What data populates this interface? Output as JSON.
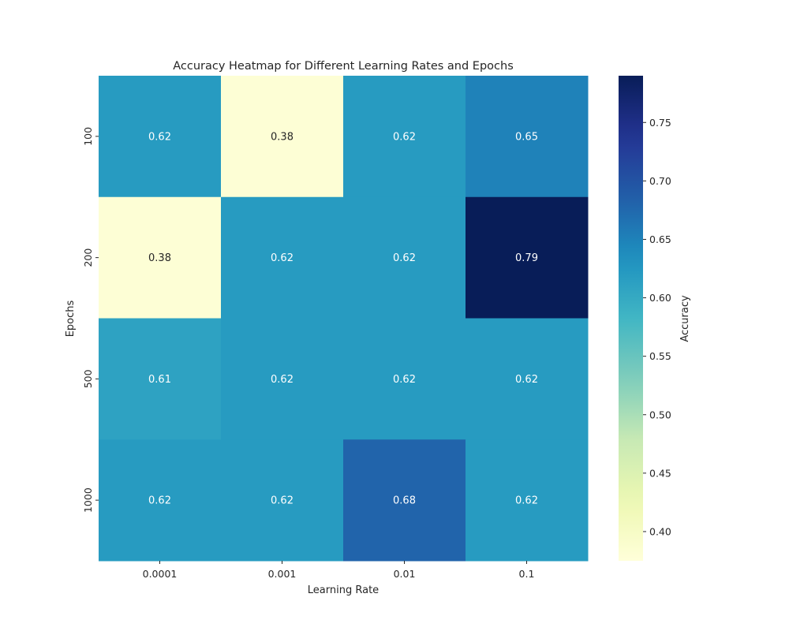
{
  "chart_data": {
    "type": "heatmap",
    "title": "Accuracy Heatmap for Different Learning Rates and Epochs",
    "xlabel": "Learning Rate",
    "ylabel": "Epochs",
    "x_categories": [
      "0.0001",
      "0.001",
      "0.01",
      "0.1"
    ],
    "y_categories": [
      "100",
      "200",
      "500",
      "1000"
    ],
    "values": [
      [
        0.62,
        0.38,
        0.62,
        0.65
      ],
      [
        0.38,
        0.62,
        0.62,
        0.79
      ],
      [
        0.61,
        0.62,
        0.62,
        0.62
      ],
      [
        0.62,
        0.62,
        0.68,
        0.62
      ]
    ],
    "value_labels": [
      [
        "0.62",
        "0.38",
        "0.62",
        "0.65"
      ],
      [
        "0.38",
        "0.62",
        "0.62",
        "0.79"
      ],
      [
        "0.61",
        "0.62",
        "0.62",
        "0.62"
      ],
      [
        "0.62",
        "0.62",
        "0.68",
        "0.62"
      ]
    ],
    "colorbar": {
      "label": "Accuracy",
      "vmin": 0.375,
      "vmax": 0.79,
      "ticks": [
        0.4,
        0.45,
        0.5,
        0.55,
        0.6,
        0.65,
        0.7,
        0.75
      ],
      "tick_labels": [
        "0.40",
        "0.45",
        "0.50",
        "0.55",
        "0.60",
        "0.65",
        "0.70",
        "0.75"
      ],
      "colormap": "YlGnBu"
    },
    "grid": false
  }
}
